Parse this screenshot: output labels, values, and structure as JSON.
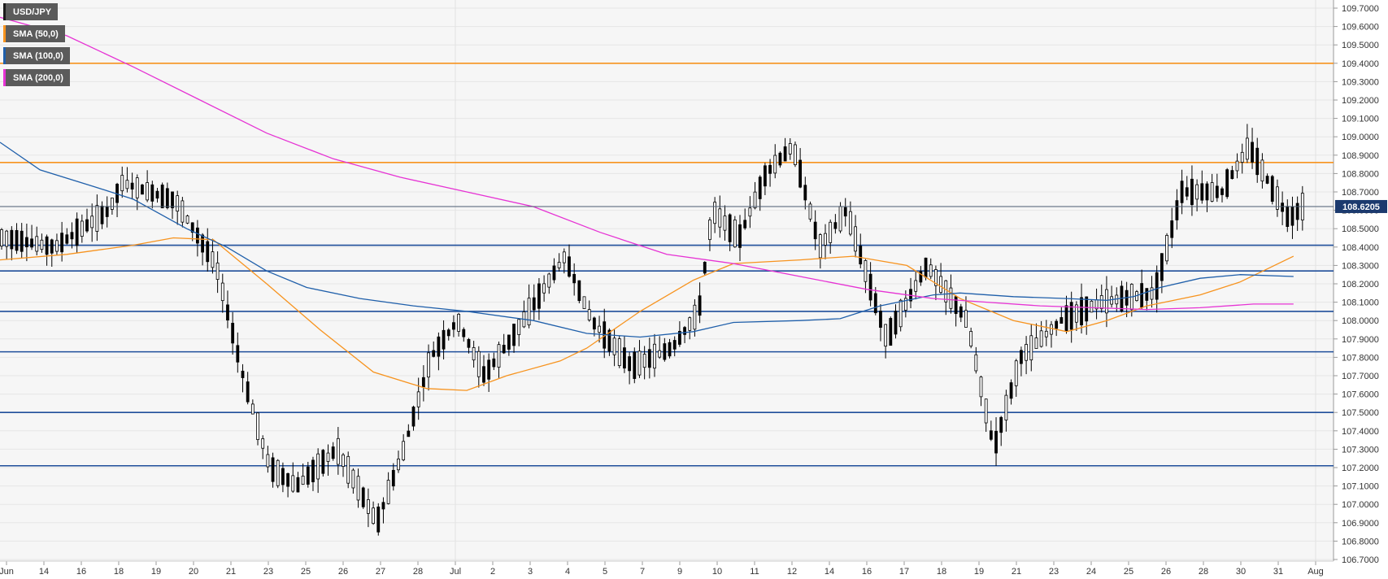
{
  "chart_data": {
    "type": "candlestick",
    "symbol": "USD/JPY",
    "current_price": "108.6205",
    "ylim": [
      106.7,
      109.7
    ],
    "y_ticks": [
      "109.7000",
      "109.6000",
      "109.5000",
      "109.4000",
      "109.3000",
      "109.2000",
      "109.1000",
      "109.0000",
      "108.9000",
      "108.8000",
      "108.7000",
      "108.6000",
      "108.5000",
      "108.4000",
      "108.3000",
      "108.2000",
      "108.1000",
      "108.0000",
      "107.9000",
      "107.8000",
      "107.7000",
      "107.6000",
      "107.5000",
      "107.4000",
      "107.3000",
      "107.2000",
      "107.1000",
      "107.0000",
      "106.9000",
      "106.8000",
      "106.7000"
    ],
    "x_ticks": [
      "Jun",
      "14",
      "16",
      "18",
      "19",
      "20",
      "21",
      "23",
      "25",
      "26",
      "27",
      "28",
      "Jul",
      "2",
      "3",
      "4",
      "5",
      "7",
      "9",
      "10",
      "11",
      "12",
      "14",
      "16",
      "17",
      "18",
      "19",
      "21",
      "23",
      "24",
      "25",
      "26",
      "28",
      "30",
      "31",
      "Aug"
    ],
    "horizontal_levels": [
      {
        "value": 109.4,
        "color": "#f7931e"
      },
      {
        "value": 108.86,
        "color": "#f7931e"
      },
      {
        "value": 108.41,
        "color": "#1f4e9a"
      },
      {
        "value": 108.27,
        "color": "#1f4e9a"
      },
      {
        "value": 108.05,
        "color": "#1f4e9a"
      },
      {
        "value": 107.83,
        "color": "#1f4e9a"
      },
      {
        "value": 107.5,
        "color": "#1f4e9a"
      },
      {
        "value": 107.21,
        "color": "#1f4e9a"
      }
    ],
    "series": [
      {
        "name": "SMA (50,0)",
        "color": "#f7931e",
        "points": [
          [
            0,
            108.33
          ],
          [
            0.05,
            108.36
          ],
          [
            0.1,
            108.41
          ],
          [
            0.13,
            108.45
          ],
          [
            0.16,
            108.44
          ],
          [
            0.2,
            108.2
          ],
          [
            0.24,
            107.95
          ],
          [
            0.28,
            107.72
          ],
          [
            0.32,
            107.63
          ],
          [
            0.35,
            107.62
          ],
          [
            0.38,
            107.7
          ],
          [
            0.42,
            107.78
          ],
          [
            0.44,
            107.85
          ],
          [
            0.48,
            108.05
          ],
          [
            0.52,
            108.22
          ],
          [
            0.55,
            108.31
          ],
          [
            0.6,
            108.33
          ],
          [
            0.64,
            108.35
          ],
          [
            0.68,
            108.3
          ],
          [
            0.72,
            108.12
          ],
          [
            0.76,
            108.0
          ],
          [
            0.8,
            107.94
          ],
          [
            0.83,
            108.0
          ],
          [
            0.86,
            108.08
          ],
          [
            0.9,
            108.14
          ],
          [
            0.93,
            108.21
          ],
          [
            0.95,
            108.28
          ],
          [
            0.97,
            108.35
          ]
        ]
      },
      {
        "name": "SMA (100,0)",
        "color": "#1f5faa",
        "points": [
          [
            0,
            108.97
          ],
          [
            0.03,
            108.82
          ],
          [
            0.07,
            108.73
          ],
          [
            0.1,
            108.66
          ],
          [
            0.14,
            108.5
          ],
          [
            0.17,
            108.4
          ],
          [
            0.2,
            108.27
          ],
          [
            0.23,
            108.18
          ],
          [
            0.27,
            108.12
          ],
          [
            0.31,
            108.08
          ],
          [
            0.35,
            108.05
          ],
          [
            0.4,
            108.0
          ],
          [
            0.44,
            107.93
          ],
          [
            0.48,
            107.91
          ],
          [
            0.52,
            107.94
          ],
          [
            0.55,
            107.99
          ],
          [
            0.6,
            108.0
          ],
          [
            0.63,
            108.01
          ],
          [
            0.66,
            108.08
          ],
          [
            0.7,
            108.14
          ],
          [
            0.72,
            108.15
          ],
          [
            0.76,
            108.13
          ],
          [
            0.8,
            108.12
          ],
          [
            0.83,
            108.11
          ],
          [
            0.85,
            108.13
          ],
          [
            0.87,
            108.18
          ],
          [
            0.9,
            108.23
          ],
          [
            0.93,
            108.25
          ],
          [
            0.97,
            108.24
          ]
        ]
      },
      {
        "name": "SMA (200,0)",
        "color": "#e633d4",
        "points": [
          [
            0,
            109.65
          ],
          [
            0.05,
            109.55
          ],
          [
            0.1,
            109.38
          ],
          [
            0.15,
            109.2
          ],
          [
            0.2,
            109.02
          ],
          [
            0.25,
            108.88
          ],
          [
            0.3,
            108.78
          ],
          [
            0.35,
            108.7
          ],
          [
            0.4,
            108.62
          ],
          [
            0.45,
            108.48
          ],
          [
            0.5,
            108.36
          ],
          [
            0.55,
            108.31
          ],
          [
            0.6,
            108.24
          ],
          [
            0.65,
            108.17
          ],
          [
            0.7,
            108.12
          ],
          [
            0.74,
            108.1
          ],
          [
            0.78,
            108.08
          ],
          [
            0.82,
            108.07
          ],
          [
            0.86,
            108.06
          ],
          [
            0.9,
            108.07
          ],
          [
            0.94,
            108.09
          ],
          [
            0.97,
            108.09
          ]
        ]
      }
    ],
    "legend_placement": "top-left",
    "grid": true
  },
  "colors": {
    "bull_candle": "#ffffff",
    "bear_candle": "#000000",
    "price_box": "#1c3a6e",
    "grid": "#e6e6e6"
  }
}
